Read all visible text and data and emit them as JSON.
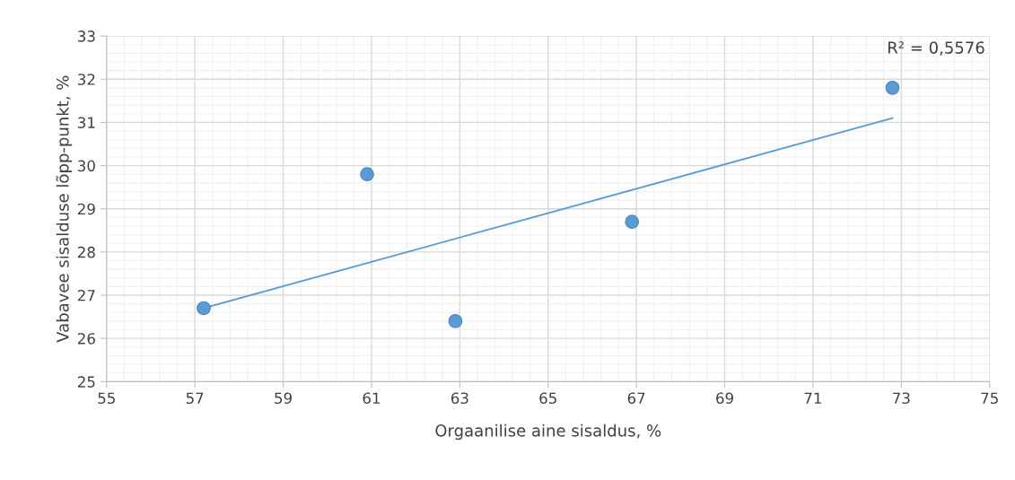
{
  "chart_data": {
    "type": "scatter",
    "xlabel": "Orgaanilise aine sisaldus, %",
    "ylabel": "Vabavee sisalduse lõpp-punkt, %",
    "series": [
      {
        "color": "#5b9bd5",
        "x": [
          57.2,
          60.9,
          62.9,
          66.9,
          72.8
        ],
        "values": [
          26.7,
          29.8,
          26.4,
          28.7,
          31.8
        ],
        "marker": "circle"
      },
      {
        "type": "line",
        "color": "#5b9bd5",
        "x": [
          57.2,
          72.8
        ],
        "values": [
          26.7,
          31.1
        ],
        "marker": "none",
        "line_style": "solid"
      }
    ],
    "annotations": [
      "R² = 0,5576"
    ],
    "xlim": [
      55,
      75
    ],
    "xticks": [
      55,
      57,
      59,
      61,
      63,
      65,
      67,
      69,
      71,
      73,
      75
    ],
    "ylim": [
      25,
      33
    ],
    "yticks": [
      25,
      26,
      27,
      28,
      29,
      30,
      31,
      32,
      33
    ],
    "grid": true
  }
}
